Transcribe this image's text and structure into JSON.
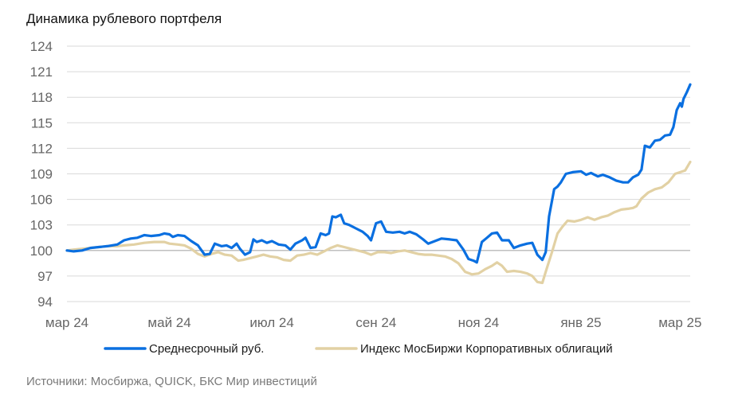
{
  "title": "Динамика рублевого портфеля",
  "source": "Источники: Мосбиржа, QUICK, БКС Мир инвестиций",
  "colors": {
    "series1": "#0a6fe0",
    "series2": "#e2d1a4",
    "grid": "#d9d9d9",
    "axis": "#bfbfbf",
    "ticks": "#666666"
  },
  "chart_data": {
    "type": "line",
    "title": "Динамика рублевого портфеля",
    "xlabel": "",
    "ylabel": "",
    "ylim": [
      94,
      124
    ],
    "yticks": [
      94,
      97,
      100,
      103,
      106,
      109,
      112,
      115,
      118,
      121,
      124
    ],
    "grid": true,
    "legend": "bottom",
    "x_range": [
      "2024-03-01",
      "2025-03-07"
    ],
    "x_ticks": [
      {
        "date": "2024-03-01",
        "label": "мар  24"
      },
      {
        "date": "2024-05-01",
        "label": "май  24"
      },
      {
        "date": "2024-07-01",
        "label": "июл  24"
      },
      {
        "date": "2024-09-01",
        "label": "сен  24"
      },
      {
        "date": "2024-11-01",
        "label": "ноя  24"
      },
      {
        "date": "2025-01-01",
        "label": "янв  25"
      },
      {
        "date": "2025-03-01",
        "label": "мар  25"
      }
    ],
    "series": [
      {
        "name": "Среднесрочный руб.",
        "color": "#0a6fe0",
        "points": [
          [
            "2024-03-01",
            100.0
          ],
          [
            "2024-03-05",
            99.9
          ],
          [
            "2024-03-10",
            100.0
          ],
          [
            "2024-03-15",
            100.3
          ],
          [
            "2024-03-20",
            100.4
          ],
          [
            "2024-03-25",
            100.5
          ],
          [
            "2024-03-31",
            100.7
          ],
          [
            "2024-04-04",
            101.2
          ],
          [
            "2024-04-08",
            101.4
          ],
          [
            "2024-04-12",
            101.5
          ],
          [
            "2024-04-16",
            101.8
          ],
          [
            "2024-04-20",
            101.7
          ],
          [
            "2024-04-25",
            101.8
          ],
          [
            "2024-04-28",
            102.0
          ],
          [
            "2024-05-01",
            101.9
          ],
          [
            "2024-05-03",
            101.6
          ],
          [
            "2024-05-06",
            101.8
          ],
          [
            "2024-05-10",
            101.7
          ],
          [
            "2024-05-14",
            101.1
          ],
          [
            "2024-05-18",
            100.6
          ],
          [
            "2024-05-22",
            99.5
          ],
          [
            "2024-05-25",
            99.6
          ],
          [
            "2024-05-28",
            100.8
          ],
          [
            "2024-06-01",
            100.5
          ],
          [
            "2024-06-04",
            100.6
          ],
          [
            "2024-06-07",
            100.3
          ],
          [
            "2024-06-10",
            100.8
          ],
          [
            "2024-06-12",
            100.2
          ],
          [
            "2024-06-15",
            99.5
          ],
          [
            "2024-06-18",
            99.8
          ],
          [
            "2024-06-20",
            101.3
          ],
          [
            "2024-06-22",
            101.0
          ],
          [
            "2024-06-25",
            101.2
          ],
          [
            "2024-06-28",
            100.9
          ],
          [
            "2024-07-01",
            101.1
          ],
          [
            "2024-07-05",
            100.7
          ],
          [
            "2024-07-09",
            100.6
          ],
          [
            "2024-07-12",
            100.1
          ],
          [
            "2024-07-15",
            100.8
          ],
          [
            "2024-07-19",
            101.2
          ],
          [
            "2024-07-21",
            101.5
          ],
          [
            "2024-07-24",
            100.3
          ],
          [
            "2024-07-27",
            100.4
          ],
          [
            "2024-07-30",
            102.0
          ],
          [
            "2024-08-02",
            101.8
          ],
          [
            "2024-08-04",
            102.0
          ],
          [
            "2024-08-06",
            104.0
          ],
          [
            "2024-08-08",
            103.9
          ],
          [
            "2024-08-11",
            104.2
          ],
          [
            "2024-08-13",
            103.2
          ],
          [
            "2024-08-16",
            103.0
          ],
          [
            "2024-08-20",
            102.6
          ],
          [
            "2024-08-24",
            102.2
          ],
          [
            "2024-08-27",
            101.7
          ],
          [
            "2024-08-29",
            101.2
          ],
          [
            "2024-09-01",
            103.2
          ],
          [
            "2024-09-04",
            103.4
          ],
          [
            "2024-09-07",
            102.2
          ],
          [
            "2024-09-11",
            102.1
          ],
          [
            "2024-09-15",
            102.2
          ],
          [
            "2024-09-18",
            102.0
          ],
          [
            "2024-09-21",
            102.2
          ],
          [
            "2024-09-25",
            101.9
          ],
          [
            "2024-09-29",
            101.3
          ],
          [
            "2024-10-02",
            100.8
          ],
          [
            "2024-10-06",
            101.1
          ],
          [
            "2024-10-10",
            101.4
          ],
          [
            "2024-10-15",
            101.3
          ],
          [
            "2024-10-19",
            101.2
          ],
          [
            "2024-10-23",
            100.1
          ],
          [
            "2024-10-26",
            99.0
          ],
          [
            "2024-10-29",
            98.8
          ],
          [
            "2024-10-31",
            98.6
          ],
          [
            "2024-11-03",
            101.0
          ],
          [
            "2024-11-06",
            101.5
          ],
          [
            "2024-11-09",
            102.0
          ],
          [
            "2024-11-12",
            102.1
          ],
          [
            "2024-11-15",
            101.2
          ],
          [
            "2024-11-19",
            101.2
          ],
          [
            "2024-11-22",
            100.3
          ],
          [
            "2024-11-26",
            100.6
          ],
          [
            "2024-11-30",
            100.8
          ],
          [
            "2024-12-03",
            100.9
          ],
          [
            "2024-12-06",
            99.5
          ],
          [
            "2024-12-09",
            98.9
          ],
          [
            "2024-12-11",
            99.8
          ],
          [
            "2024-12-13",
            104.0
          ],
          [
            "2024-12-16",
            107.2
          ],
          [
            "2024-12-18",
            107.5
          ],
          [
            "2024-12-20",
            108.0
          ],
          [
            "2024-12-23",
            109.0
          ],
          [
            "2024-12-27",
            109.2
          ],
          [
            "2025-01-01",
            109.3
          ],
          [
            "2025-01-04",
            108.9
          ],
          [
            "2025-01-07",
            109.1
          ],
          [
            "2025-01-11",
            108.7
          ],
          [
            "2025-01-14",
            108.9
          ],
          [
            "2025-01-18",
            108.6
          ],
          [
            "2025-01-22",
            108.2
          ],
          [
            "2025-01-26",
            108.0
          ],
          [
            "2025-01-29",
            108.0
          ],
          [
            "2025-02-01",
            108.6
          ],
          [
            "2025-02-04",
            108.9
          ],
          [
            "2025-02-06",
            109.5
          ],
          [
            "2025-02-08",
            112.3
          ],
          [
            "2025-02-11",
            112.1
          ],
          [
            "2025-02-14",
            112.9
          ],
          [
            "2025-02-17",
            113.0
          ],
          [
            "2025-02-20",
            113.5
          ],
          [
            "2025-02-23",
            113.6
          ],
          [
            "2025-02-25",
            114.5
          ],
          [
            "2025-02-27",
            116.5
          ],
          [
            "2025-03-01",
            117.3
          ],
          [
            "2025-03-02",
            116.9
          ],
          [
            "2025-03-03",
            117.8
          ],
          [
            "2025-03-05",
            118.6
          ],
          [
            "2025-03-07",
            119.5
          ]
        ]
      },
      {
        "name": "Индекс МосБиржи Корпоративных облигаций",
        "color": "#e2d1a4",
        "points": [
          [
            "2024-03-01",
            100.0
          ],
          [
            "2024-03-05",
            100.1
          ],
          [
            "2024-03-10",
            100.2
          ],
          [
            "2024-03-15",
            100.3
          ],
          [
            "2024-03-20",
            100.4
          ],
          [
            "2024-03-25",
            100.5
          ],
          [
            "2024-03-31",
            100.5
          ],
          [
            "2024-04-04",
            100.6
          ],
          [
            "2024-04-10",
            100.7
          ],
          [
            "2024-04-16",
            100.9
          ],
          [
            "2024-04-22",
            101.0
          ],
          [
            "2024-04-28",
            101.0
          ],
          [
            "2024-05-01",
            100.8
          ],
          [
            "2024-05-06",
            100.7
          ],
          [
            "2024-05-10",
            100.6
          ],
          [
            "2024-05-14",
            100.2
          ],
          [
            "2024-05-18",
            99.6
          ],
          [
            "2024-05-22",
            99.3
          ],
          [
            "2024-05-26",
            99.6
          ],
          [
            "2024-05-30",
            99.8
          ],
          [
            "2024-06-03",
            99.5
          ],
          [
            "2024-06-07",
            99.4
          ],
          [
            "2024-06-11",
            98.8
          ],
          [
            "2024-06-14",
            98.9
          ],
          [
            "2024-06-18",
            99.1
          ],
          [
            "2024-06-22",
            99.3
          ],
          [
            "2024-06-26",
            99.5
          ],
          [
            "2024-06-30",
            99.3
          ],
          [
            "2024-07-04",
            99.2
          ],
          [
            "2024-07-08",
            98.9
          ],
          [
            "2024-07-12",
            98.8
          ],
          [
            "2024-07-16",
            99.4
          ],
          [
            "2024-07-20",
            99.5
          ],
          [
            "2024-07-24",
            99.7
          ],
          [
            "2024-07-28",
            99.5
          ],
          [
            "2024-08-01",
            99.9
          ],
          [
            "2024-08-05",
            100.3
          ],
          [
            "2024-08-09",
            100.6
          ],
          [
            "2024-08-13",
            100.4
          ],
          [
            "2024-08-17",
            100.2
          ],
          [
            "2024-08-21",
            100.0
          ],
          [
            "2024-08-25",
            99.8
          ],
          [
            "2024-08-29",
            99.5
          ],
          [
            "2024-09-02",
            99.8
          ],
          [
            "2024-09-06",
            99.8
          ],
          [
            "2024-09-10",
            99.7
          ],
          [
            "2024-09-14",
            99.9
          ],
          [
            "2024-09-18",
            100.0
          ],
          [
            "2024-09-22",
            99.8
          ],
          [
            "2024-09-26",
            99.6
          ],
          [
            "2024-09-30",
            99.5
          ],
          [
            "2024-10-04",
            99.5
          ],
          [
            "2024-10-08",
            99.4
          ],
          [
            "2024-10-12",
            99.3
          ],
          [
            "2024-10-16",
            99.0
          ],
          [
            "2024-10-20",
            98.5
          ],
          [
            "2024-10-24",
            97.5
          ],
          [
            "2024-10-28",
            97.2
          ],
          [
            "2024-11-01",
            97.3
          ],
          [
            "2024-11-05",
            97.8
          ],
          [
            "2024-11-09",
            98.2
          ],
          [
            "2024-11-12",
            98.6
          ],
          [
            "2024-11-15",
            98.2
          ],
          [
            "2024-11-18",
            97.5
          ],
          [
            "2024-11-22",
            97.6
          ],
          [
            "2024-11-26",
            97.5
          ],
          [
            "2024-11-30",
            97.3
          ],
          [
            "2024-12-03",
            97.0
          ],
          [
            "2024-12-06",
            96.3
          ],
          [
            "2024-12-09",
            96.2
          ],
          [
            "2024-12-11",
            97.5
          ],
          [
            "2024-12-15",
            100.0
          ],
          [
            "2024-12-18",
            102.0
          ],
          [
            "2024-12-21",
            102.8
          ],
          [
            "2024-12-24",
            103.5
          ],
          [
            "2024-12-28",
            103.4
          ],
          [
            "2025-01-01",
            103.6
          ],
          [
            "2025-01-05",
            103.9
          ],
          [
            "2025-01-09",
            103.6
          ],
          [
            "2025-01-13",
            103.9
          ],
          [
            "2025-01-17",
            104.1
          ],
          [
            "2025-01-21",
            104.5
          ],
          [
            "2025-01-25",
            104.8
          ],
          [
            "2025-01-29",
            104.9
          ],
          [
            "2025-02-01",
            105.0
          ],
          [
            "2025-02-03",
            105.2
          ],
          [
            "2025-02-06",
            106.1
          ],
          [
            "2025-02-10",
            106.8
          ],
          [
            "2025-02-14",
            107.2
          ],
          [
            "2025-02-18",
            107.4
          ],
          [
            "2025-02-22",
            108.0
          ],
          [
            "2025-02-26",
            109.0
          ],
          [
            "2025-03-01",
            109.2
          ],
          [
            "2025-03-04",
            109.4
          ],
          [
            "2025-03-07",
            110.4
          ]
        ]
      }
    ]
  }
}
